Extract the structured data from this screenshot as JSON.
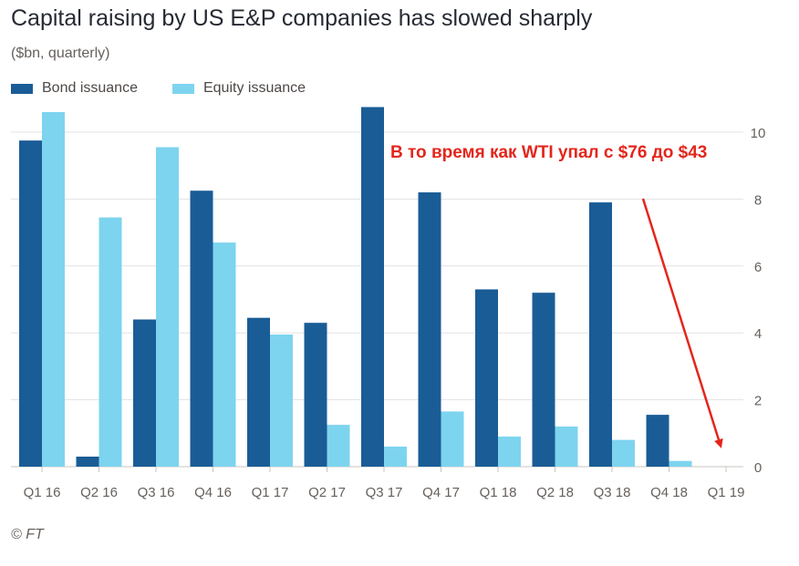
{
  "title": "Capital raising by US E&P companies has slowed sharply",
  "subtitle": "($bn, quarterly)",
  "legend": {
    "bond": "Bond issuance",
    "equity": "Equity issuance"
  },
  "annotation": "В то время как WTI упал с  $76 до $43",
  "source": "© FT",
  "colors": {
    "bond": "#1a5c96",
    "equity": "#7dd4ef",
    "annotation": "#e3261c",
    "grid": "#e3e3e3",
    "axis_text": "#66605c"
  },
  "chart_data": {
    "type": "bar",
    "title": "Capital raising by US E&P companies has slowed sharply",
    "subtitle": "($bn, quarterly)",
    "xlabel": "",
    "ylabel": "$bn",
    "ylim": [
      0,
      10
    ],
    "yticks": [
      0,
      2,
      4,
      6,
      8,
      10
    ],
    "grid": true,
    "legend_position": "top-left",
    "categories": [
      "Q1 16",
      "Q2 16",
      "Q3 16",
      "Q4 16",
      "Q1 17",
      "Q2 17",
      "Q3 17",
      "Q4 17",
      "Q1 18",
      "Q2 18",
      "Q3 18",
      "Q4 18",
      "Q1 19"
    ],
    "series": [
      {
        "name": "Bond issuance",
        "values": [
          9.75,
          0.3,
          4.4,
          8.25,
          4.45,
          4.3,
          10.75,
          8.2,
          5.3,
          5.2,
          7.9,
          1.55,
          0
        ]
      },
      {
        "name": "Equity issuance",
        "values": [
          10.6,
          7.45,
          9.55,
          6.7,
          3.95,
          1.25,
          0.6,
          1.65,
          0.9,
          1.2,
          0.8,
          0.17,
          0
        ]
      }
    ]
  }
}
